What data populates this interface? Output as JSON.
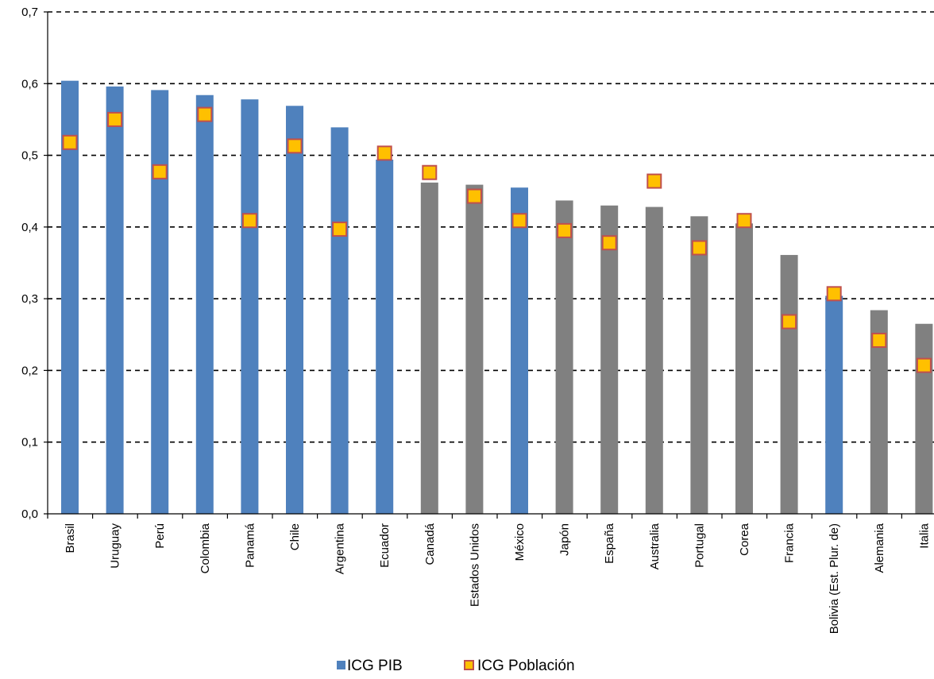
{
  "chart_data": {
    "type": "bar",
    "ylim": [
      0,
      0.7
    ],
    "yticks": [
      "0,0",
      "0,1",
      "0,2",
      "0,3",
      "0,4",
      "0,5",
      "0,6",
      "0,7"
    ],
    "grid": "horizontal-dashed",
    "legend_position": "bottom",
    "categories": [
      "Brasil",
      "Uruguay",
      "Perú",
      "Colombia",
      "Panamá",
      "Chile",
      "Argentina",
      "Ecuador",
      "Canadá",
      "Estados Unidos",
      "México",
      "Japón",
      "España",
      "Australia",
      "Portugal",
      "Corea",
      "Francia",
      "Bolivia (Est. Plur. de)",
      "Alemania",
      "Italia"
    ],
    "series": [
      {
        "name": "ICG PIB",
        "kind": "bar",
        "values": [
          0.604,
          0.596,
          0.591,
          0.584,
          0.578,
          0.569,
          0.539,
          0.494,
          0.462,
          0.459,
          0.455,
          0.437,
          0.43,
          0.428,
          0.415,
          0.405,
          0.361,
          0.304,
          0.284,
          0.265
        ],
        "colors": [
          "#4f81bd",
          "#4f81bd",
          "#4f81bd",
          "#4f81bd",
          "#4f81bd",
          "#4f81bd",
          "#4f81bd",
          "#4f81bd",
          "#808080",
          "#808080",
          "#4f81bd",
          "#808080",
          "#808080",
          "#808080",
          "#808080",
          "#808080",
          "#808080",
          "#4f81bd",
          "#808080",
          "#808080"
        ]
      },
      {
        "name": "ICG Población",
        "kind": "marker",
        "values": [
          0.518,
          0.55,
          0.477,
          0.557,
          0.409,
          0.513,
          0.397,
          0.503,
          0.476,
          0.443,
          0.409,
          0.395,
          0.378,
          0.464,
          0.371,
          0.409,
          0.268,
          0.307,
          0.242,
          0.207
        ],
        "fill": "#ffc000",
        "stroke": "#c0504d"
      }
    ],
    "legend_swatch_colors": {
      "bar": "#4f81bd",
      "marker_fill": "#ffc000",
      "marker_stroke": "#c0504d"
    }
  }
}
